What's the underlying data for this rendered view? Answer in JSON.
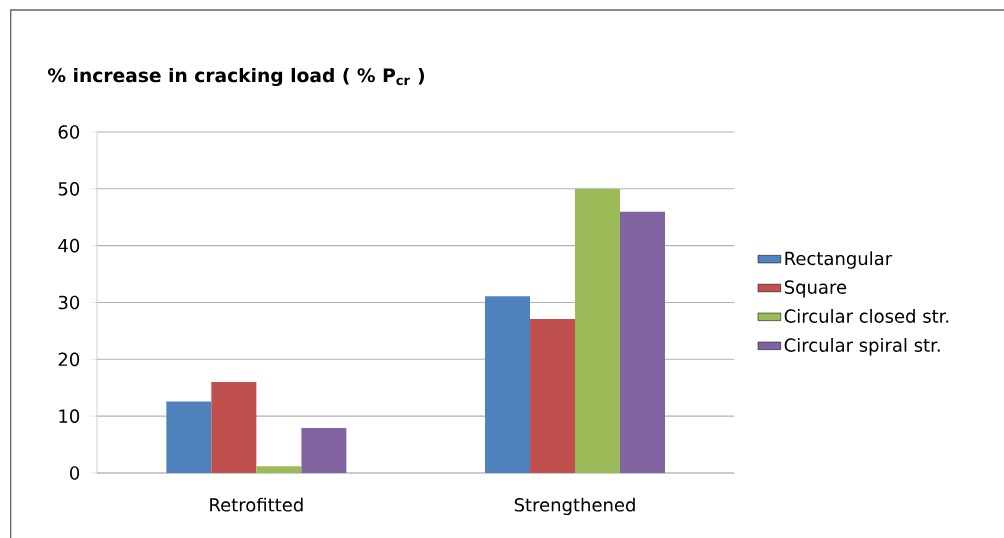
{
  "chart_data": {
    "type": "bar",
    "title": "% increase in cracking load  ( % **P**$_{cr}$ )",
    "categories": [
      "Retrofitted",
      "Strengthened"
    ],
    "series": [
      {
        "name": "Rectangular",
        "color": "#4f81bd",
        "values": [
          12.6,
          31.1
        ]
      },
      {
        "name": "Square",
        "color": "#c0504d",
        "values": [
          16.0,
          27.1
        ]
      },
      {
        "name": "Circular closed str.",
        "color": "#9bbb59",
        "values": [
          1.2,
          50.0
        ]
      },
      {
        "name": "Circular spiral str.",
        "color": "#8064a2",
        "values": [
          7.9,
          46.0
        ]
      }
    ],
    "ylim": [
      0,
      60
    ],
    "yticks": [
      0,
      10,
      20,
      30,
      40,
      50,
      60
    ],
    "grid": "y",
    "legend": "right"
  }
}
